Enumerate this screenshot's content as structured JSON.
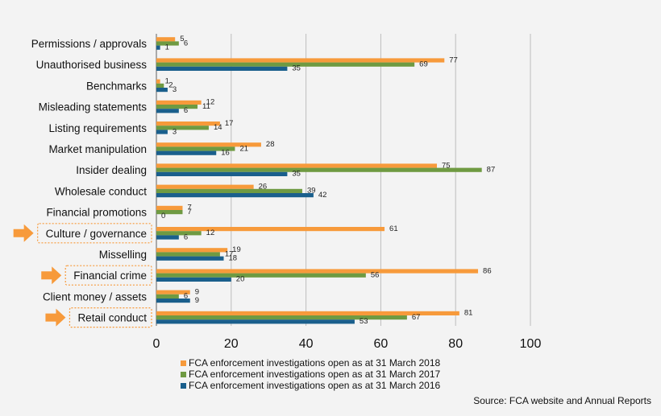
{
  "chart_data": {
    "type": "bar",
    "orientation": "horizontal",
    "categories": [
      "Permissions / approvals",
      "Unauthorised business",
      "Benchmarks",
      "Misleading statements",
      "Listing requirements",
      "Market manipulation",
      "Insider dealing",
      "Wholesale conduct",
      "Financial promotions",
      "Culture / governance",
      "Misselling",
      "Financial crime",
      "Client money / assets",
      "Retail conduct"
    ],
    "highlighted": [
      "Culture / governance",
      "Financial crime",
      "Retail conduct"
    ],
    "series": [
      {
        "name": "FCA enforcement investigations open as at 31 March 2018",
        "color": "#f79a3b",
        "values": [
          5,
          77,
          1,
          12,
          17,
          28,
          75,
          26,
          7,
          61,
          19,
          86,
          9,
          81
        ]
      },
      {
        "name": "FCA enforcement investigations open as at 31 March 2017",
        "color": "#6f9a42",
        "values": [
          6,
          69,
          2,
          11,
          14,
          21,
          87,
          39,
          7,
          12,
          17,
          56,
          6,
          67
        ]
      },
      {
        "name": "FCA enforcement investigations open as at 31 March 2016",
        "color": "#1a5f8c",
        "values": [
          1,
          35,
          3,
          6,
          3,
          16,
          35,
          42,
          0,
          6,
          18,
          20,
          9,
          53
        ]
      }
    ],
    "xlim": [
      0,
      100
    ],
    "xticks": [
      0,
      20,
      40,
      60,
      80,
      100
    ],
    "grid": true,
    "legend_position": "bottom",
    "source": "Source: FCA website and Annual Reports",
    "arrow_color": "#f79a3b"
  }
}
